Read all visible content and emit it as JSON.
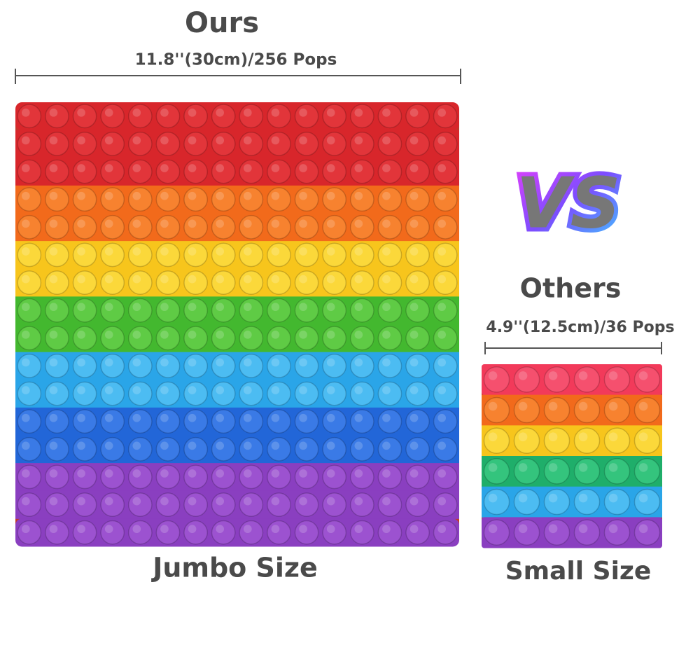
{
  "left": {
    "title": "Ours",
    "dimension": "11.8''(30cm)/256 Pops",
    "caption": "Jumbo Size"
  },
  "vs": "VS",
  "right": {
    "title": "Others",
    "dimension": "4.9''(12.5cm)/36 Pops",
    "caption": "Small Size"
  }
}
